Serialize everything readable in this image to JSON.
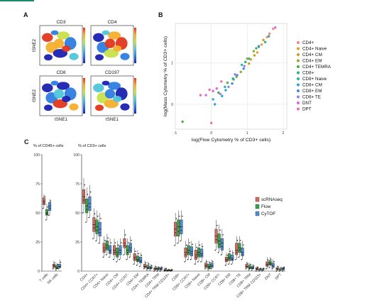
{
  "panels": {
    "a": {
      "label": "A",
      "maps": [
        {
          "title": "CD3",
          "ylabel": "tSNE2",
          "xlabel": ""
        },
        {
          "title": "CD4",
          "ylabel": "",
          "xlabel": ""
        },
        {
          "title": "CD8",
          "ylabel": "tSNE2",
          "xlabel": "tSNE1"
        },
        {
          "title": "CD197",
          "ylabel": "",
          "xlabel": "tSNE1"
        }
      ],
      "colorscale": [
        "#1a22b0",
        "#2e7de0",
        "#4fc6d8",
        "#c8e24a",
        "#f4b02e",
        "#e2361c"
      ]
    },
    "b": {
      "label": "B"
    },
    "c": {
      "label": "C",
      "sub1": "% of CD45+ cells",
      "sub2": "% of CD3+ cells"
    }
  },
  "chart_data": [
    {
      "type": "scatter",
      "panel": "B",
      "xlabel": "log(Flow Cytometry % of CD3+ cells)",
      "ylabel": "log(Mass Cytometry % of CD3+ cells)",
      "xlim": [
        -1,
        2.1
      ],
      "ylim": [
        -0.6,
        1.95
      ],
      "xticks": [
        -1,
        0,
        1,
        2
      ],
      "yticks": [
        0,
        1
      ],
      "grid": true,
      "legend_position": "right",
      "series": [
        {
          "name": "CD4+",
          "color": "#f08a7e",
          "x": [
            1.62,
            1.72,
            1.55
          ],
          "y": [
            1.7,
            1.82,
            1.62
          ]
        },
        {
          "name": "CD4+ Naive",
          "color": "#e29a2c",
          "x": [
            1.1,
            1.28,
            1.4
          ],
          "y": [
            1.08,
            1.25,
            1.44
          ]
        },
        {
          "name": "CD4+ CM",
          "color": "#c99e14",
          "x": [
            1.32,
            1.45,
            1.2,
            1.05
          ],
          "y": [
            1.38,
            1.55,
            1.18,
            0.98
          ]
        },
        {
          "name": "CD4+ EM",
          "color": "#9aa72a",
          "x": [
            1.0,
            0.82,
            1.18,
            0.7
          ],
          "y": [
            1.1,
            0.78,
            1.28,
            0.66
          ]
        },
        {
          "name": "CD4+ TEMRA",
          "color": "#4fae3a",
          "x": [
            -0.8,
            0.2,
            0.45,
            0.62
          ],
          "y": [
            -0.42,
            0.28,
            0.52,
            0.6
          ]
        },
        {
          "name": "CD8+",
          "color": "#2db37e",
          "x": [
            1.25,
            1.5,
            0.95,
            1.6
          ],
          "y": [
            1.35,
            1.5,
            1.02,
            1.64
          ]
        },
        {
          "name": "CD8+ Naive",
          "color": "#27b3a6",
          "x": [
            0.6,
            0.85,
            1.05,
            0.38
          ],
          "y": [
            0.62,
            0.95,
            1.1,
            0.42
          ]
        },
        {
          "name": "CD8+ CM",
          "color": "#25a9d4",
          "x": [
            0.1,
            0.3,
            0.05,
            0.4
          ],
          "y": [
            0.0,
            0.2,
            0.12,
            0.34
          ]
        },
        {
          "name": "CD8+ EM",
          "color": "#3b8ee6",
          "x": [
            0.72,
            0.9,
            1.32,
            0.58
          ],
          "y": [
            0.7,
            0.86,
            1.4,
            0.5
          ]
        },
        {
          "name": "CD8+ TE",
          "color": "#9c7ee8",
          "x": [
            0.48,
            0.66,
            0.92,
            0.25
          ],
          "y": [
            0.42,
            0.72,
            0.92,
            0.25
          ]
        },
        {
          "name": "DNT",
          "color": "#d16be0",
          "x": [
            -0.15,
            0.05,
            0.15,
            1.78
          ],
          "y": [
            0.22,
            0.32,
            0.38,
            1.85
          ]
        },
        {
          "name": "DPT",
          "color": "#ef6fa8",
          "x": [
            -0.3,
            0.0,
            -0.05,
            0.28
          ],
          "y": [
            0.22,
            -0.45,
            0.35,
            0.55
          ]
        }
      ]
    },
    {
      "type": "box",
      "panel": "C-left",
      "title": "% of CD45+ cells",
      "categories": [
        "T cells",
        "NK cells"
      ],
      "ylim": [
        0,
        100
      ],
      "yticks": [
        0,
        25,
        50,
        75,
        100
      ],
      "series": [
        {
          "name": "scRNAseq",
          "color": "#d26a5e",
          "boxes": [
            [
              54,
              57,
              60,
              63,
              66
            ],
            [
              2,
              3,
              5,
              6,
              9
            ]
          ]
        },
        {
          "name": "Flow",
          "color": "#3aa44a",
          "boxes": [
            [
              44,
              48,
              50,
              53,
              58
            ],
            [
              1,
              2,
              3,
              5,
              7
            ]
          ]
        },
        {
          "name": "CyTOF",
          "color": "#4e8fd8",
          "boxes": [
            [
              48,
              52,
              56,
              59,
              62
            ],
            [
              2,
              3,
              4,
              6,
              10
            ]
          ]
        }
      ]
    },
    {
      "type": "box",
      "panel": "C-right",
      "title": "% of CD3+ cells",
      "categories": [
        "CD4+",
        "CD4+ CCR7+",
        "CD4+ Naive",
        "CD4+ CM",
        "CD4+ CCR7-",
        "CD4+ EM",
        "CD4+ TEMRA",
        "CD4+ TRM",
        "CD4+ TRM CD103+",
        "CD8+",
        "CD8+ CCR7+",
        "CD8+ Naive",
        "CD8+ CM",
        "CD8+ CCR7-",
        "CD8+ EM",
        "CD8+ TE",
        "CD8+ TRM",
        "CD8+ TRM CD103+",
        "DNT",
        "DPT"
      ],
      "ylim": [
        0,
        100
      ],
      "yticks": [
        0,
        25,
        50,
        75,
        100
      ],
      "legend": [
        "scRNAseq",
        "Flow",
        "CyTOF"
      ],
      "series": [
        {
          "name": "scRNAseq",
          "color": "#d26a5e",
          "boxes": [
            [
              50,
              58,
              64,
              70,
              80
            ],
            [
              28,
              34,
              40,
              46,
              54
            ],
            [
              12,
              16,
              20,
              24,
              30
            ],
            [
              10,
              14,
              18,
              22,
              28
            ],
            [
              14,
              20,
              24,
              28,
              36
            ],
            [
              6,
              9,
              12,
              15,
              20
            ],
            [
              2,
              3,
              4,
              6,
              9
            ],
            [
              0,
              1,
              2,
              3,
              5
            ],
            [
              0,
              0,
              1,
              2,
              3
            ],
            [
              22,
              30,
              36,
              42,
              50
            ],
            [
              8,
              12,
              16,
              20,
              26
            ],
            [
              6,
              10,
              14,
              18,
              24
            ],
            [
              2,
              3,
              5,
              7,
              10
            ],
            [
              18,
              24,
              30,
              36,
              44
            ],
            [
              5,
              8,
              10,
              12,
              16
            ],
            [
              10,
              14,
              18,
              24,
              30
            ],
            [
              2,
              3,
              4,
              6,
              8
            ],
            [
              0,
              1,
              2,
              3,
              4
            ],
            [
              2,
              4,
              6,
              8,
              12
            ],
            [
              0,
              1,
              2,
              3,
              5
            ]
          ]
        },
        {
          "name": "Flow",
          "color": "#3aa44a",
          "boxes": [
            [
              42,
              50,
              56,
              62,
              72
            ],
            [
              26,
              32,
              38,
              44,
              52
            ],
            [
              14,
              18,
              22,
              26,
              32
            ],
            [
              8,
              12,
              16,
              20,
              26
            ],
            [
              10,
              14,
              18,
              22,
              28
            ],
            [
              5,
              8,
              10,
              13,
              18
            ],
            [
              1,
              2,
              3,
              5,
              8
            ],
            [
              0,
              1,
              2,
              3,
              4
            ],
            [
              0,
              0,
              1,
              1,
              2
            ],
            [
              24,
              30,
              38,
              44,
              52
            ],
            [
              10,
              14,
              18,
              22,
              28
            ],
            [
              8,
              12,
              16,
              20,
              26
            ],
            [
              1,
              2,
              4,
              6,
              9
            ],
            [
              16,
              20,
              26,
              32,
              40
            ],
            [
              6,
              9,
              12,
              15,
              20
            ],
            [
              12,
              16,
              20,
              24,
              30
            ],
            [
              1,
              2,
              3,
              5,
              7
            ],
            [
              0,
              1,
              1,
              2,
              3
            ],
            [
              3,
              5,
              7,
              9,
              12
            ],
            [
              0,
              1,
              1,
              2,
              4
            ]
          ]
        },
        {
          "name": "CyTOF",
          "color": "#4e8fd8",
          "boxes": [
            [
              46,
              52,
              58,
              64,
              74
            ],
            [
              24,
              30,
              36,
              42,
              50
            ],
            [
              12,
              15,
              18,
              22,
              28
            ],
            [
              10,
              14,
              18,
              22,
              28
            ],
            [
              12,
              16,
              20,
              24,
              30
            ],
            [
              4,
              7,
              9,
              12,
              16
            ],
            [
              1,
              2,
              3,
              4,
              6
            ],
            [
              0,
              1,
              2,
              3,
              4
            ],
            [
              0,
              0,
              1,
              1,
              2
            ],
            [
              26,
              32,
              38,
              44,
              52
            ],
            [
              10,
              13,
              17,
              21,
              26
            ],
            [
              8,
              12,
              15,
              19,
              24
            ],
            [
              2,
              3,
              5,
              7,
              10
            ],
            [
              14,
              18,
              24,
              28,
              36
            ],
            [
              6,
              9,
              11,
              14,
              18
            ],
            [
              10,
              13,
              16,
              20,
              26
            ],
            [
              1,
              2,
              3,
              4,
              6
            ],
            [
              0,
              1,
              1,
              2,
              3
            ],
            [
              2,
              3,
              5,
              7,
              10
            ],
            [
              0,
              1,
              2,
              3,
              4
            ]
          ]
        }
      ]
    }
  ]
}
